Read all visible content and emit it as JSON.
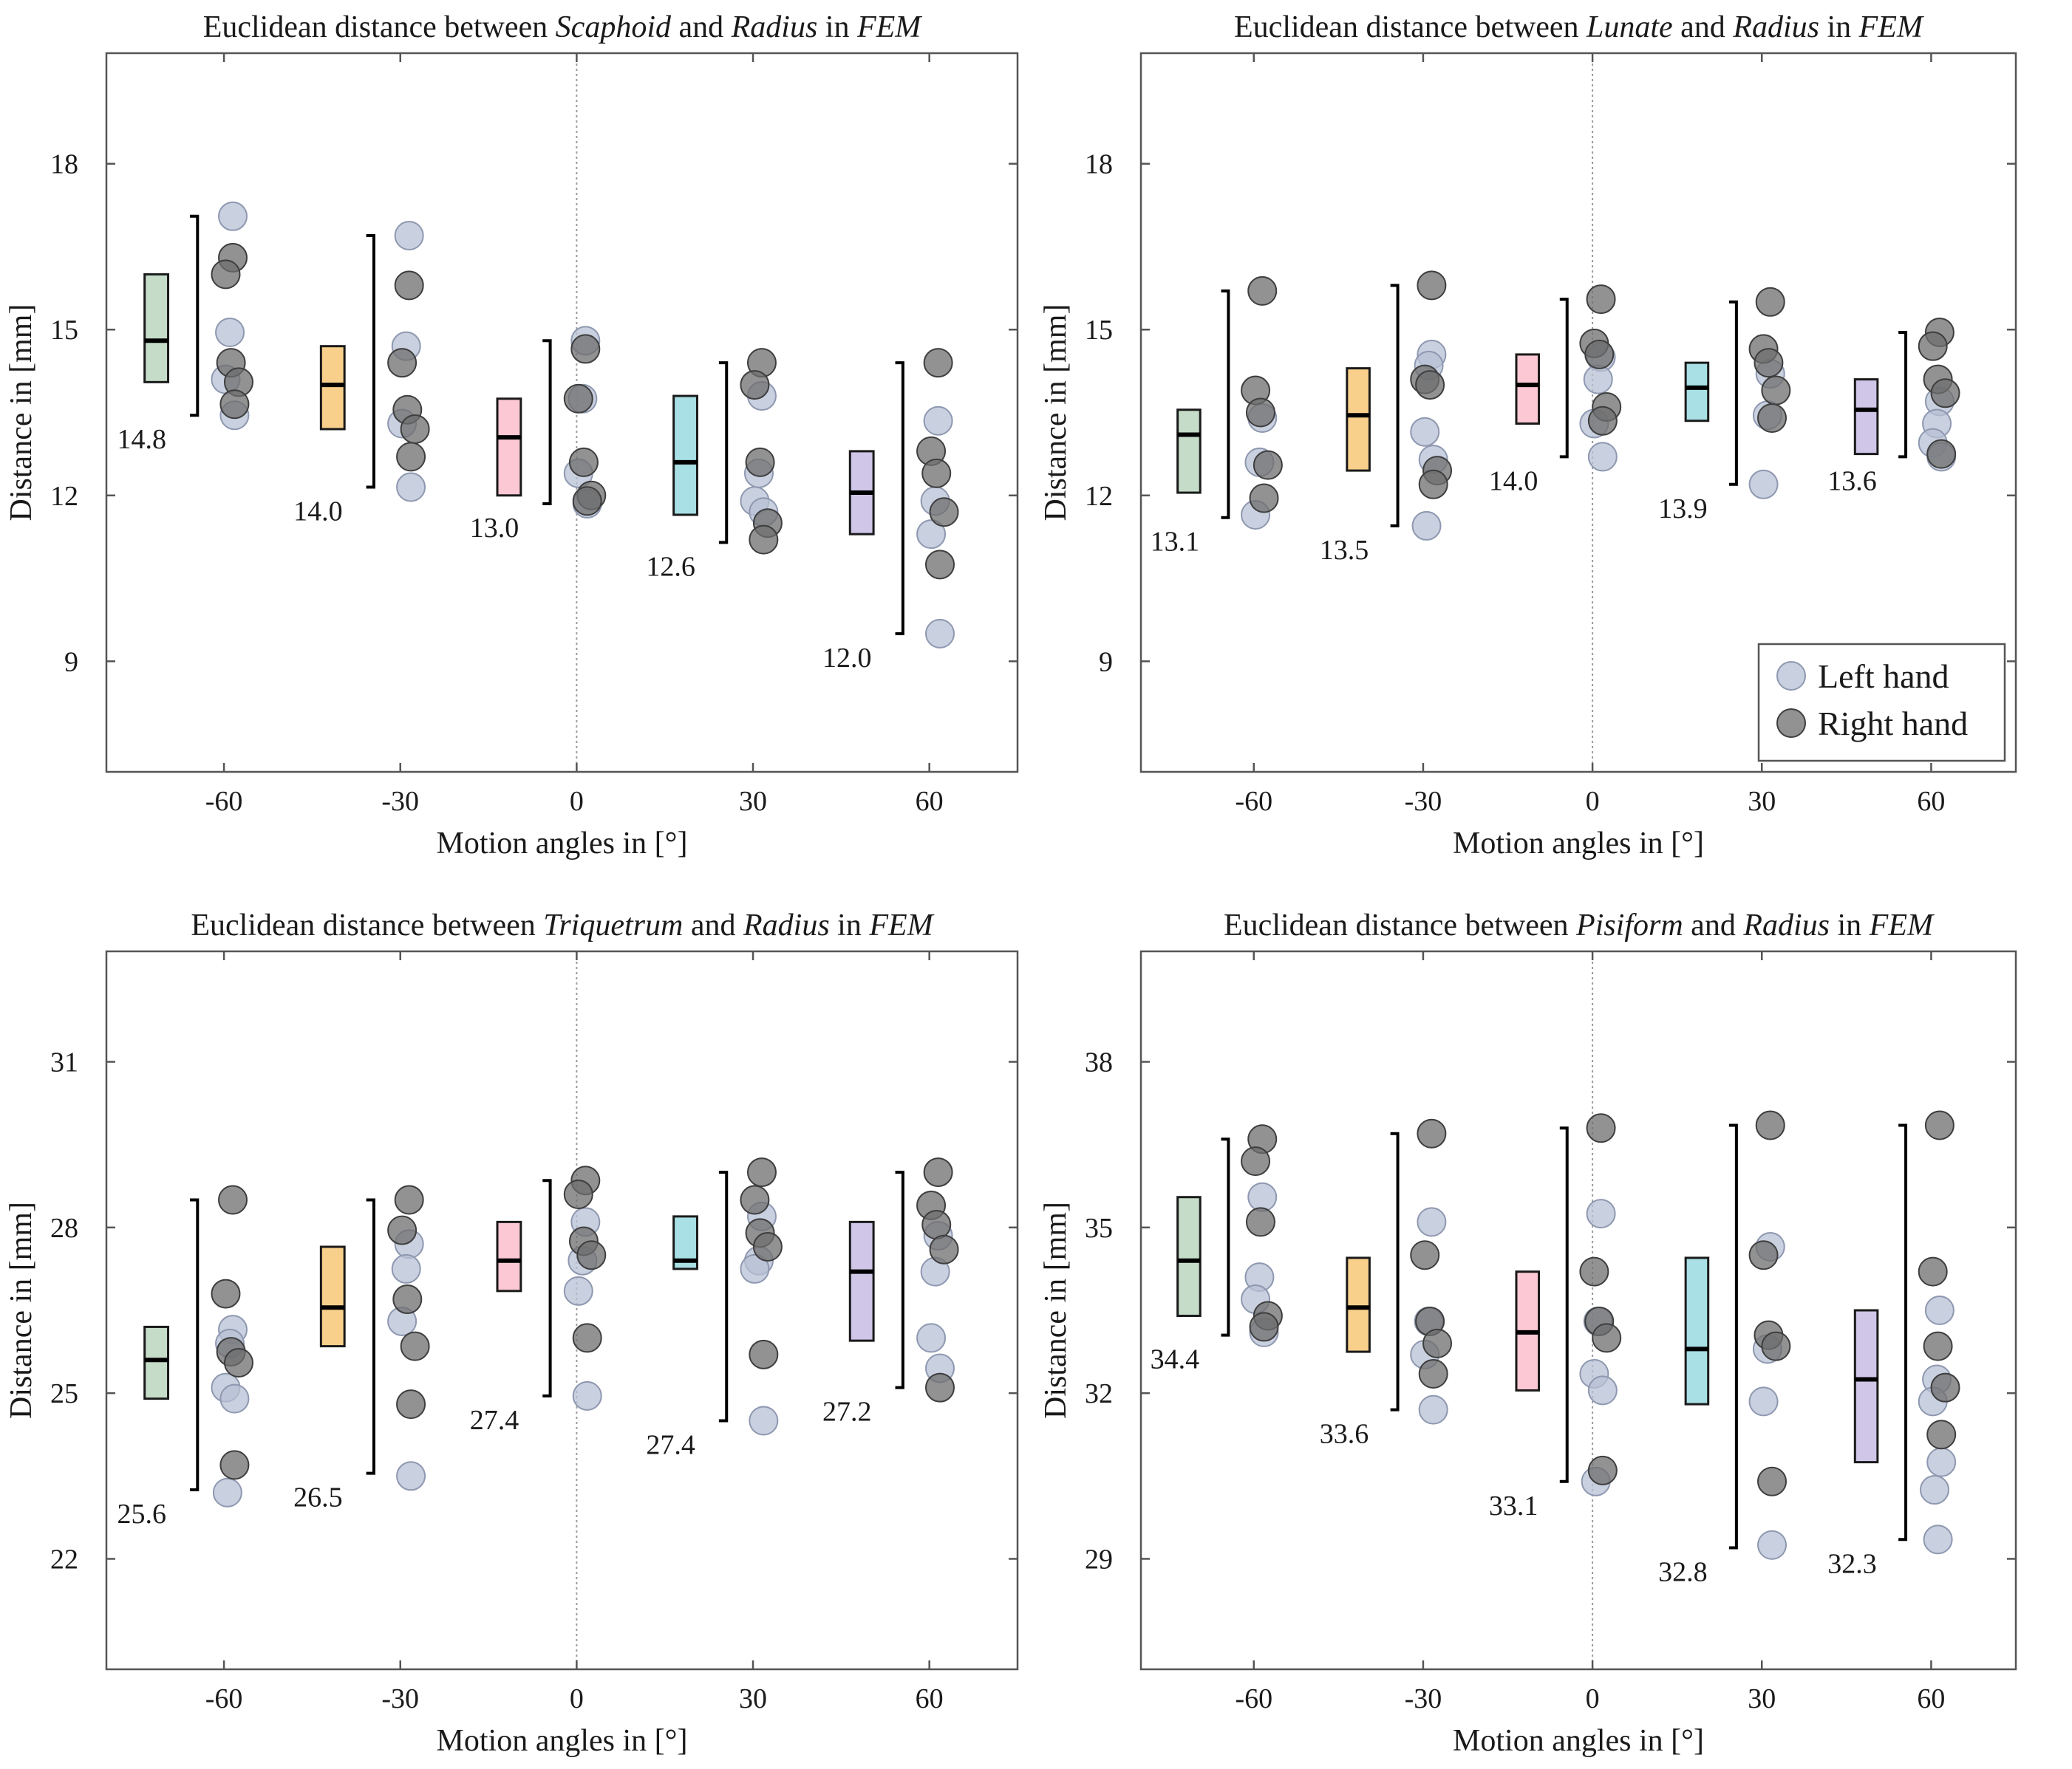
{
  "colors": {
    "box_colors": [
      "#c5dcc8",
      "#f8d08c",
      "#fbc8d3",
      "#a8e0e5",
      "#cfc6e8"
    ],
    "left_point": "#b7c0d4",
    "right_point": "#6d6d6d"
  },
  "chart_data": [
    {
      "type": "box+scatter",
      "title_parts": [
        {
          "text": "Euclidean distance between ",
          "italic": false
        },
        {
          "text": "Scaphoid",
          "italic": true
        },
        {
          "text": " and ",
          "italic": false
        },
        {
          "text": "Radius",
          "italic": true
        },
        {
          "text": " in ",
          "italic": false
        },
        {
          "text": "FEM",
          "italic": true
        }
      ],
      "xlabel": "Motion angles in [°]",
      "ylabel": "Distance in [mm]",
      "xlim": [
        -80,
        75
      ],
      "ylim": [
        7,
        20
      ],
      "xticks": [
        -60,
        -30,
        0,
        30,
        60
      ],
      "xtick_labels": [
        "-60",
        "-30",
        "0",
        "30",
        "60"
      ],
      "yticks": [
        9,
        12,
        15,
        18
      ],
      "ytick_labels": [
        "9",
        "12",
        "15",
        "18"
      ],
      "groups": [
        {
          "angle": -60,
          "q1": 14.05,
          "median": 14.8,
          "q3": 16.0,
          "whisker_low": 13.45,
          "whisker_high": 17.05,
          "median_label": "14.8",
          "left": [
            17.05,
            14.95,
            14.1,
            13.45
          ],
          "right": [
            16.3,
            16.0,
            14.4,
            14.05,
            13.65
          ]
        },
        {
          "angle": -30,
          "q1": 13.2,
          "median": 14.0,
          "q3": 14.7,
          "whisker_low": 12.15,
          "whisker_high": 16.7,
          "median_label": "14.0",
          "left": [
            16.7,
            14.7,
            13.3,
            12.15
          ],
          "right": [
            15.8,
            14.4,
            13.55,
            13.2,
            12.7
          ]
        },
        {
          "angle": 0,
          "q1": 12.0,
          "median": 13.05,
          "q3": 13.75,
          "whisker_low": 11.85,
          "whisker_high": 14.8,
          "median_label": "13.0",
          "left": [
            14.8,
            13.75,
            12.4,
            11.85
          ],
          "right": [
            14.65,
            13.75,
            12.6,
            12.0,
            11.9
          ]
        },
        {
          "angle": 30,
          "q1": 11.65,
          "median": 12.6,
          "q3": 13.8,
          "whisker_low": 11.15,
          "whisker_high": 14.4,
          "median_label": "12.6",
          "left": [
            13.8,
            12.4,
            11.9,
            11.7
          ],
          "right": [
            14.4,
            14.0,
            12.6,
            11.5,
            11.2
          ]
        },
        {
          "angle": 60,
          "q1": 11.3,
          "median": 12.05,
          "q3": 12.8,
          "whisker_low": 9.5,
          "whisker_high": 14.4,
          "median_label": "12.0",
          "left": [
            13.35,
            11.9,
            11.3,
            9.5
          ],
          "right": [
            14.4,
            12.8,
            12.4,
            11.7,
            10.75
          ]
        }
      ]
    },
    {
      "type": "box+scatter",
      "title_parts": [
        {
          "text": "Euclidean distance between ",
          "italic": false
        },
        {
          "text": "Lunate",
          "italic": true
        },
        {
          "text": " and ",
          "italic": false
        },
        {
          "text": "Radius",
          "italic": true
        },
        {
          "text": " in ",
          "italic": false
        },
        {
          "text": "FEM",
          "italic": true
        }
      ],
      "xlabel": "Motion angles in [°]",
      "ylabel": "Distance in [mm]",
      "xlim": [
        -80,
        75
      ],
      "ylim": [
        7,
        20
      ],
      "xticks": [
        -60,
        -30,
        0,
        30,
        60
      ],
      "xtick_labels": [
        "-60",
        "-30",
        "0",
        "30",
        "60"
      ],
      "yticks": [
        9,
        12,
        15,
        18
      ],
      "ytick_labels": [
        "9",
        "12",
        "15",
        "18"
      ],
      "legend": {
        "position": "bottom-right",
        "left_label": "Left hand",
        "right_label": "Right hand"
      },
      "groups": [
        {
          "angle": -60,
          "q1": 12.05,
          "median": 13.1,
          "q3": 13.55,
          "whisker_low": 11.6,
          "whisker_high": 15.7,
          "median_label": "13.1",
          "left": [
            13.4,
            12.6,
            11.65
          ],
          "right": [
            15.7,
            13.9,
            13.5,
            12.55,
            11.95
          ]
        },
        {
          "angle": -30,
          "q1": 12.45,
          "median": 13.45,
          "q3": 14.3,
          "whisker_low": 11.45,
          "whisker_high": 15.8,
          "median_label": "13.5",
          "left": [
            14.55,
            14.35,
            13.15,
            12.65,
            11.45
          ],
          "right": [
            15.8,
            14.1,
            14.0,
            12.45,
            12.2
          ]
        },
        {
          "angle": 0,
          "q1": 13.3,
          "median": 14.0,
          "q3": 14.55,
          "whisker_low": 12.7,
          "whisker_high": 15.55,
          "median_label": "14.0",
          "left": [
            14.5,
            14.1,
            13.3,
            12.7
          ],
          "right": [
            15.55,
            14.75,
            14.55,
            13.6,
            13.35
          ]
        },
        {
          "angle": 30,
          "q1": 13.35,
          "median": 13.95,
          "q3": 14.4,
          "whisker_low": 12.2,
          "whisker_high": 15.5,
          "median_label": "13.9",
          "left": [
            14.2,
            13.45,
            12.2
          ],
          "right": [
            15.5,
            14.65,
            14.4,
            13.9,
            13.4
          ]
        },
        {
          "angle": 60,
          "q1": 12.75,
          "median": 13.55,
          "q3": 14.1,
          "whisker_low": 12.7,
          "whisker_high": 14.95,
          "median_label": "13.6",
          "left": [
            13.7,
            13.3,
            12.95,
            12.7
          ],
          "right": [
            14.95,
            14.7,
            14.1,
            13.85,
            12.75
          ]
        }
      ]
    },
    {
      "type": "box+scatter",
      "title_parts": [
        {
          "text": "Euclidean distance between ",
          "italic": false
        },
        {
          "text": "Triquetrum",
          "italic": true
        },
        {
          "text": " and ",
          "italic": false
        },
        {
          "text": "Radius",
          "italic": true
        },
        {
          "text": " in ",
          "italic": false
        },
        {
          "text": "FEM",
          "italic": true
        }
      ],
      "xlabel": "Motion angles in [°]",
      "ylabel": "Distance in [mm]",
      "xlim": [
        -80,
        75
      ],
      "ylim": [
        20,
        33
      ],
      "xticks": [
        -60,
        -30,
        0,
        30,
        60
      ],
      "xtick_labels": [
        "-60",
        "-30",
        "0",
        "30",
        "60"
      ],
      "yticks": [
        22,
        25,
        28,
        31
      ],
      "ytick_labels": [
        "22",
        "25",
        "28",
        "31"
      ],
      "groups": [
        {
          "angle": -60,
          "q1": 24.9,
          "median": 25.6,
          "q3": 26.2,
          "whisker_low": 23.25,
          "whisker_high": 28.5,
          "median_label": "25.6",
          "left": [
            26.15,
            25.9,
            25.1,
            24.9,
            23.2
          ],
          "right": [
            28.5,
            26.8,
            25.75,
            25.55,
            23.7
          ]
        },
        {
          "angle": -30,
          "q1": 25.85,
          "median": 26.55,
          "q3": 27.65,
          "whisker_low": 23.55,
          "whisker_high": 28.5,
          "median_label": "26.5",
          "left": [
            27.7,
            27.25,
            26.3,
            23.5
          ],
          "right": [
            28.5,
            27.95,
            26.7,
            25.85,
            24.8
          ]
        },
        {
          "angle": 0,
          "q1": 26.85,
          "median": 27.4,
          "q3": 28.1,
          "whisker_low": 24.95,
          "whisker_high": 28.85,
          "median_label": "27.4",
          "left": [
            28.1,
            27.4,
            26.85,
            24.95
          ],
          "right": [
            28.85,
            28.6,
            27.75,
            27.5,
            26.0
          ]
        },
        {
          "angle": 30,
          "q1": 27.25,
          "median": 27.4,
          "q3": 28.2,
          "whisker_low": 24.5,
          "whisker_high": 29.0,
          "median_label": "27.4",
          "left": [
            28.2,
            27.4,
            27.25,
            24.5
          ],
          "right": [
            29.0,
            28.5,
            27.9,
            27.65,
            25.7
          ]
        },
        {
          "angle": 60,
          "q1": 25.95,
          "median": 27.2,
          "q3": 28.1,
          "whisker_low": 25.1,
          "whisker_high": 29.0,
          "median_label": "27.2",
          "left": [
            27.85,
            27.2,
            26.0,
            25.45
          ],
          "right": [
            29.0,
            28.4,
            28.05,
            27.6,
            25.1
          ]
        }
      ]
    },
    {
      "type": "box+scatter",
      "title_parts": [
        {
          "text": "Euclidean distance between ",
          "italic": false
        },
        {
          "text": "Pisiform",
          "italic": true
        },
        {
          "text": " and ",
          "italic": false
        },
        {
          "text": "Radius",
          "italic": true
        },
        {
          "text": " in ",
          "italic": false
        },
        {
          "text": "FEM",
          "italic": true
        }
      ],
      "xlabel": "Motion angles in [°]",
      "ylabel": "Distance in [mm]",
      "xlim": [
        -80,
        75
      ],
      "ylim": [
        27,
        40
      ],
      "xticks": [
        -60,
        -30,
        0,
        30,
        60
      ],
      "xtick_labels": [
        "-60",
        "-30",
        "0",
        "30",
        "60"
      ],
      "yticks": [
        29,
        32,
        35,
        38
      ],
      "ytick_labels": [
        "29",
        "32",
        "35",
        "38"
      ],
      "groups": [
        {
          "angle": -60,
          "q1": 33.4,
          "median": 34.4,
          "q3": 35.55,
          "whisker_low": 33.05,
          "whisker_high": 36.6,
          "median_label": "34.4",
          "left": [
            35.55,
            34.1,
            33.7,
            33.1
          ],
          "right": [
            36.6,
            36.2,
            35.1,
            33.4,
            33.2
          ]
        },
        {
          "angle": -30,
          "q1": 32.75,
          "median": 33.55,
          "q3": 34.45,
          "whisker_low": 31.7,
          "whisker_high": 36.7,
          "median_label": "33.6",
          "left": [
            35.1,
            33.3,
            32.7,
            31.7
          ],
          "right": [
            36.7,
            34.5,
            33.3,
            32.9,
            32.35
          ]
        },
        {
          "angle": 0,
          "q1": 32.05,
          "median": 33.1,
          "q3": 34.2,
          "whisker_low": 30.4,
          "whisker_high": 36.8,
          "median_label": "33.1",
          "left": [
            35.25,
            33.3,
            32.35,
            32.05,
            30.4
          ],
          "right": [
            36.8,
            34.2,
            33.3,
            33.0,
            30.6
          ]
        },
        {
          "angle": 30,
          "q1": 31.8,
          "median": 32.8,
          "q3": 34.45,
          "whisker_low": 29.2,
          "whisker_high": 36.85,
          "median_label": "32.8",
          "left": [
            34.65,
            32.8,
            31.85,
            29.25
          ],
          "right": [
            36.85,
            34.5,
            33.05,
            32.85,
            30.4
          ]
        },
        {
          "angle": 60,
          "q1": 30.75,
          "median": 32.25,
          "q3": 33.5,
          "whisker_low": 29.35,
          "whisker_high": 36.85,
          "median_label": "32.3",
          "left": [
            33.5,
            32.25,
            31.85,
            30.75,
            30.25,
            29.35
          ],
          "right": [
            36.85,
            34.2,
            32.85,
            32.1,
            31.25
          ]
        }
      ]
    }
  ]
}
